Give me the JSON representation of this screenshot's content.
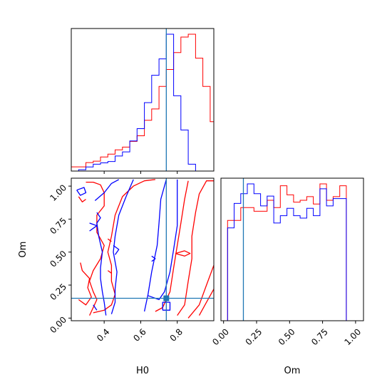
{
  "chart_data": {
    "type": "corner",
    "parameters": [
      "H0",
      "Om"
    ],
    "axis_labels": {
      "x_bottom_left": "H0",
      "x_bottom_right": "Om",
      "y_left": "Om"
    },
    "colors": {
      "series_a": "#ff0000",
      "series_b": "#0000ff",
      "truth": "#1f77b4"
    },
    "truths": {
      "H0": 0.74,
      "Om": 0.15
    },
    "ranges": {
      "H0": [
        0.22,
        1.0
      ],
      "Om": [
        -0.02,
        1.06
      ]
    },
    "ticks": {
      "H0": [
        0.4,
        0.6,
        0.8
      ],
      "H0_labels": [
        "0.4",
        "0.6",
        "0.8"
      ],
      "Om": [
        0.0,
        0.25,
        0.5,
        0.75,
        1.0
      ],
      "Om_labels": [
        "0.00",
        "0.25",
        "0.50",
        "0.75",
        "1.00"
      ]
    },
    "hist_H0": {
      "bin_edges": [
        0.22,
        0.26,
        0.3,
        0.34,
        0.38,
        0.42,
        0.46,
        0.5,
        0.54,
        0.58,
        0.62,
        0.66,
        0.7,
        0.74,
        0.78,
        0.82,
        0.86,
        0.9,
        0.94,
        0.98,
        1.0
      ],
      "series": [
        {
          "id": "series_a",
          "counts": [
            0.03,
            0.03,
            0.06,
            0.07,
            0.1,
            0.12,
            0.15,
            0.17,
            0.21,
            0.25,
            0.36,
            0.44,
            0.6,
            0.72,
            0.84,
            0.95,
            0.97,
            0.8,
            0.6,
            0.35
          ]
        },
        {
          "id": "series_b",
          "counts": [
            0.0,
            0.01,
            0.03,
            0.05,
            0.06,
            0.07,
            0.11,
            0.14,
            0.22,
            0.31,
            0.5,
            0.7,
            0.82,
            1.0,
            0.55,
            0.3,
            0.05,
            0.0,
            0.0,
            0.0
          ]
        }
      ]
    },
    "hist_Om": {
      "bin_edges": [
        -0.02,
        0.03,
        0.08,
        0.13,
        0.18,
        0.23,
        0.28,
        0.33,
        0.38,
        0.43,
        0.48,
        0.53,
        0.58,
        0.63,
        0.68,
        0.73,
        0.78,
        0.83,
        0.88,
        0.93,
        0.98,
        1.02
      ],
      "series": [
        {
          "id": "series_a",
          "counts": [
            0.0,
            0.55,
            0.55,
            0.62,
            0.62,
            0.6,
            0.6,
            0.66,
            0.62,
            0.74,
            0.69,
            0.65,
            0.66,
            0.68,
            0.64,
            0.75,
            0.66,
            0.68,
            0.74,
            0.0,
            0.0
          ]
        },
        {
          "id": "series_b",
          "counts": [
            0.0,
            0.38,
            0.48,
            0.52,
            0.56,
            0.52,
            0.47,
            0.51,
            0.4,
            0.43,
            0.46,
            0.43,
            0.42,
            0.46,
            0.43,
            0.54,
            0.47,
            0.5,
            0.5,
            0.0,
            0.0
          ]
        }
      ]
    },
    "contours": [
      {
        "id": "series_a",
        "paths": [
          [
            [
              0.3,
              1.03
            ],
            [
              0.34,
              1.03
            ],
            [
              0.38,
              1.01
            ],
            [
              0.4,
              0.95
            ],
            [
              0.4,
              0.85
            ],
            [
              0.36,
              0.78
            ],
            [
              0.36,
              0.65
            ],
            [
              0.4,
              0.55
            ],
            [
              0.38,
              0.45
            ],
            [
              0.34,
              0.36
            ],
            [
              0.32,
              0.28
            ],
            [
              0.34,
              0.2
            ],
            [
              0.36,
              0.14
            ],
            [
              0.34,
              0.08
            ],
            [
              0.32,
              0.02
            ]
          ],
          [
            [
              0.34,
              0.04
            ],
            [
              0.4,
              0.06
            ],
            [
              0.44,
              0.1
            ],
            [
              0.46,
              0.18
            ],
            [
              0.44,
              0.28
            ],
            [
              0.44,
              0.4
            ],
            [
              0.42,
              0.5
            ],
            [
              0.44,
              0.62
            ],
            [
              0.46,
              0.78
            ],
            [
              0.5,
              0.92
            ],
            [
              0.56,
              1.0
            ],
            [
              0.62,
              1.04
            ],
            [
              0.68,
              1.05
            ]
          ],
          [
            [
              0.26,
              0.14
            ],
            [
              0.3,
              0.1
            ],
            [
              0.33,
              0.16
            ],
            [
              0.31,
              0.23
            ],
            [
              0.32,
              0.3
            ],
            [
              0.28,
              0.36
            ],
            [
              0.27,
              0.42
            ]
          ],
          [
            [
              0.68,
              0.05
            ],
            [
              0.72,
              0.08
            ],
            [
              0.76,
              0.2
            ],
            [
              0.78,
              0.38
            ],
            [
              0.8,
              0.55
            ],
            [
              0.82,
              0.72
            ],
            [
              0.84,
              0.9
            ],
            [
              0.86,
              1.04
            ]
          ],
          [
            [
              0.8,
              0.02
            ],
            [
              0.84,
              0.1
            ],
            [
              0.86,
              0.28
            ],
            [
              0.88,
              0.45
            ],
            [
              0.88,
              0.62
            ],
            [
              0.9,
              0.8
            ],
            [
              0.92,
              0.94
            ],
            [
              0.96,
              1.04
            ],
            [
              1.0,
              1.04
            ]
          ],
          [
            [
              0.86,
              0.0
            ],
            [
              0.92,
              0.1
            ],
            [
              0.96,
              0.25
            ],
            [
              1.0,
              0.4
            ]
          ],
          [
            [
              0.92,
              0.02
            ],
            [
              0.96,
              0.12
            ],
            [
              1.0,
              0.22
            ]
          ],
          [
            [
              0.79,
              0.49
            ],
            [
              0.84,
              0.51
            ],
            [
              0.87,
              0.49
            ],
            [
              0.84,
              0.47
            ],
            [
              0.79,
              0.49
            ]
          ],
          [
            [
              0.26,
              0.92
            ],
            [
              0.28,
              0.88
            ],
            [
              0.3,
              0.9
            ]
          ],
          [
            [
              0.42,
              0.36
            ],
            [
              0.44,
              0.34
            ]
          ],
          [
            [
              0.42,
              0.6
            ],
            [
              0.44,
              0.58
            ]
          ]
        ]
      },
      {
        "id": "series_b",
        "paths": [
          [
            [
              0.25,
              0.97
            ],
            [
              0.29,
              0.99
            ],
            [
              0.3,
              0.95
            ],
            [
              0.27,
              0.93
            ],
            [
              0.25,
              0.97
            ]
          ],
          [
            [
              0.35,
              0.89
            ],
            [
              0.4,
              0.95
            ],
            [
              0.44,
              1.02
            ],
            [
              0.48,
              1.05
            ]
          ],
          [
            [
              0.36,
              0.8
            ],
            [
              0.38,
              0.76
            ],
            [
              0.36,
              0.72
            ],
            [
              0.37,
              0.62
            ],
            [
              0.39,
              0.5
            ],
            [
              0.38,
              0.38
            ],
            [
              0.38,
              0.3
            ],
            [
              0.39,
              0.2
            ],
            [
              0.4,
              0.12
            ],
            [
              0.41,
              0.02
            ]
          ],
          [
            [
              0.44,
              0.03
            ],
            [
              0.46,
              0.12
            ],
            [
              0.46,
              0.22
            ],
            [
              0.47,
              0.35
            ],
            [
              0.45,
              0.5
            ],
            [
              0.46,
              0.62
            ],
            [
              0.48,
              0.78
            ],
            [
              0.52,
              0.92
            ],
            [
              0.56,
              1.05
            ]
          ],
          [
            [
              0.64,
              0.17
            ],
            [
              0.7,
              0.14
            ],
            [
              0.73,
              0.2
            ],
            [
              0.76,
              0.35
            ],
            [
              0.78,
              0.52
            ],
            [
              0.8,
              0.7
            ],
            [
              0.8,
              0.88
            ],
            [
              0.8,
              1.05
            ]
          ],
          [
            [
              0.62,
              0.05
            ],
            [
              0.64,
              0.18
            ],
            [
              0.66,
              0.35
            ],
            [
              0.69,
              0.55
            ],
            [
              0.7,
              0.72
            ],
            [
              0.71,
              0.9
            ],
            [
              0.74,
              1.05
            ]
          ],
          [
            [
              0.72,
              0.06
            ],
            [
              0.76,
              0.06
            ],
            [
              0.76,
              0.12
            ],
            [
              0.72,
              0.12
            ],
            [
              0.72,
              0.06
            ]
          ],
          [
            [
              0.32,
              0.66
            ],
            [
              0.36,
              0.7
            ],
            [
              0.32,
              0.72
            ]
          ],
          [
            [
              0.45,
              0.55
            ],
            [
              0.48,
              0.52
            ],
            [
              0.46,
              0.48
            ]
          ],
          [
            [
              0.66,
              0.43
            ],
            [
              0.68,
              0.45
            ],
            [
              0.66,
              0.47
            ]
          ],
          [
            [
              0.34,
              0.1
            ],
            [
              0.36,
              0.06
            ]
          ]
        ]
      }
    ]
  }
}
